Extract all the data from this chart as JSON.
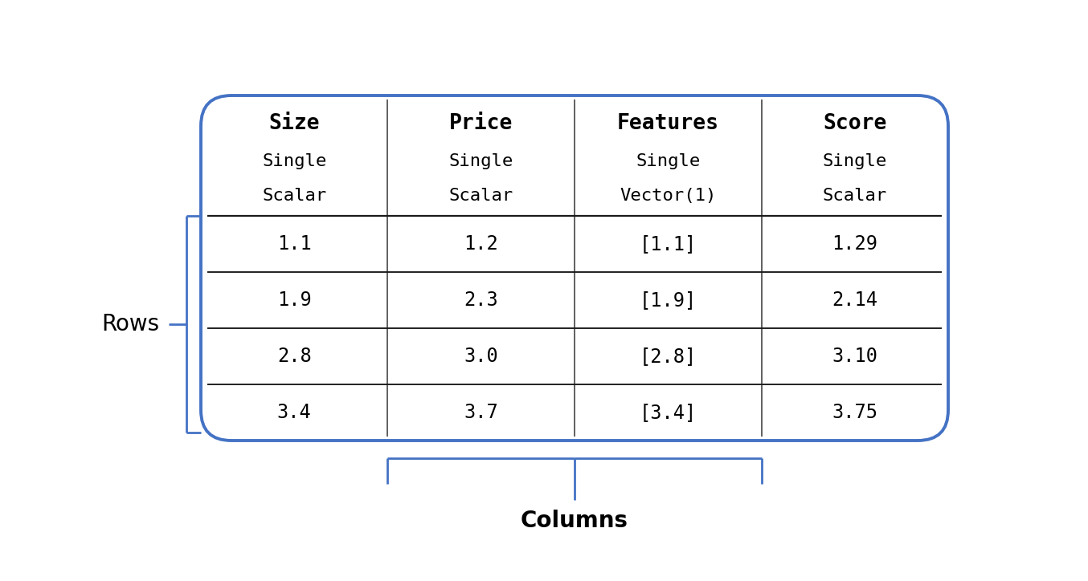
{
  "background_color": "#ffffff",
  "table_border_color": "#4472c4",
  "table_border_linewidth": 2.8,
  "divider_color": "#1a1a1a",
  "divider_linewidth": 1.6,
  "col_divider_color": "#444444",
  "col_divider_linewidth": 1.2,
  "brace_color": "#4472c4",
  "brace_linewidth": 2.0,
  "columns": [
    "Size",
    "Price",
    "Features",
    "Score"
  ],
  "col_subtypes": [
    "Single",
    "Single",
    "Single",
    "Single"
  ],
  "col_subtypes2": [
    "Scalar",
    "Scalar",
    "Vector(1)",
    "Scalar"
  ],
  "rows": [
    [
      "1.1",
      "1.2",
      "[1.1]",
      "1.29"
    ],
    [
      "1.9",
      "2.3",
      "[1.9]",
      "2.14"
    ],
    [
      "2.8",
      "3.0",
      "[2.8]",
      "3.10"
    ],
    [
      "3.4",
      "3.7",
      "[3.4]",
      "3.75"
    ]
  ],
  "label_rows": "Rows",
  "label_columns": "Columns",
  "header_fontsize": 19,
  "subtype_fontsize": 16,
  "data_fontsize": 17,
  "label_fontsize": 20,
  "font_family": "DejaVu Sans",
  "monospace_family": "DejaVu Sans Mono"
}
